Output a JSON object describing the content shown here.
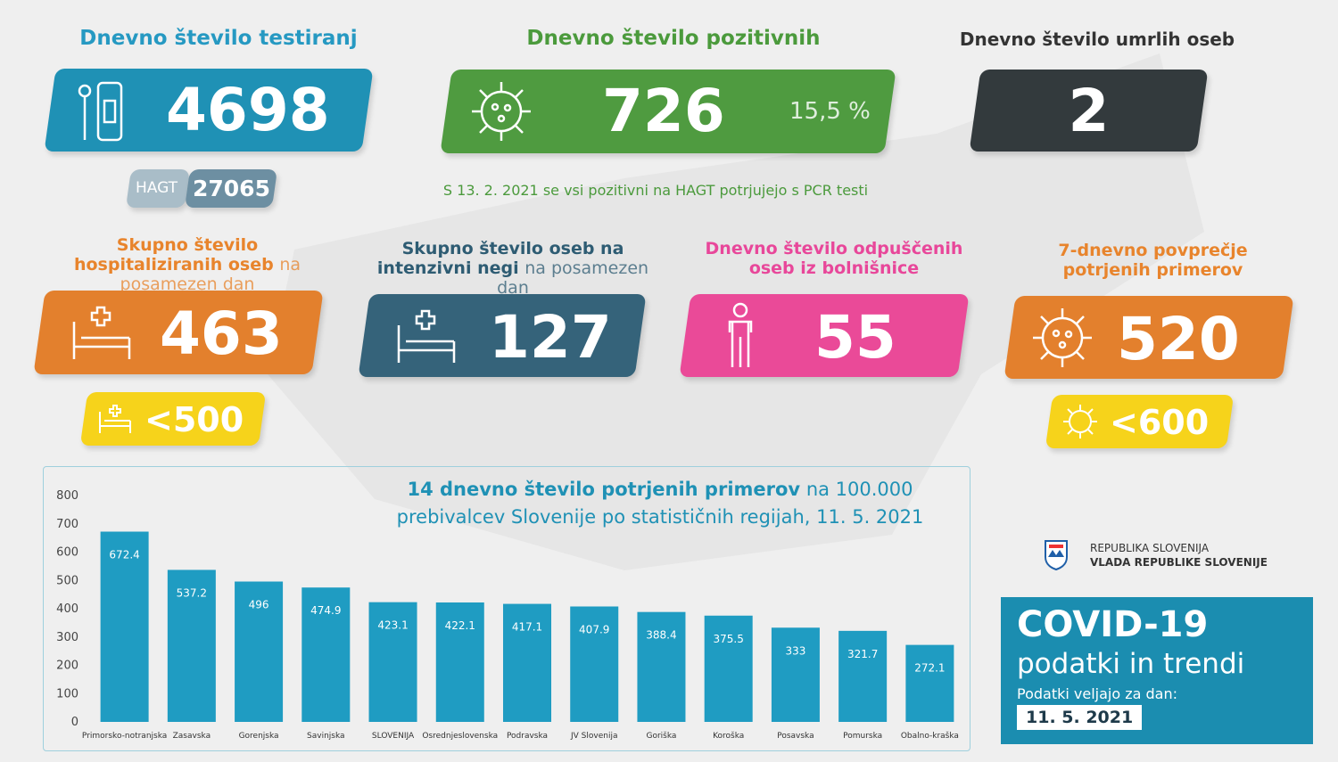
{
  "cards": [
    {
      "title": "Dnevno število testiranj",
      "value": "4698",
      "sub_label": "HAGT",
      "sub_value": "27065"
    },
    {
      "title": "Dnevno število pozitivnih",
      "value": "726",
      "percent": "15,5 %",
      "note": "S 13. 2. 2021 se vsi pozitivni na HAGT potrjujejo s PCR testi"
    },
    {
      "title": "Dnevno število umrlih oseb",
      "value": "2"
    },
    {
      "title_bold": "Skupno število hospitaliziranih oseb",
      "title_light": "na posamezen dan",
      "value": "463",
      "limit": "<500"
    },
    {
      "title_bold": "Skupno število oseb na intenzivni negi",
      "title_light": "na posamezen dan",
      "value": "127"
    },
    {
      "title": "Dnevno število odpuščenih oseb iz bolnišnice",
      "value": "55"
    },
    {
      "title": "7-dnevno povprečje potrjenih primerov",
      "value": "520",
      "limit": "<600"
    }
  ],
  "chart_data": {
    "type": "bar",
    "title": [
      "14 dnevno število potrjenih primerov",
      "na 100.000 prebivalcev Slovenije po statističnih regijah, 11. 5. 2021"
    ],
    "categories": [
      "Primorsko-notranjska",
      "Zasavska",
      "Gorenjska",
      "Savinjska",
      "SLOVENIJA",
      "Osrednjeslovenska",
      "Podravska",
      "JV Slovenija",
      "Goriška",
      "Koroška",
      "Posavska",
      "Pomurska",
      "Obalno-kraška"
    ],
    "values": [
      672.4,
      537.2,
      496,
      474.9,
      423.1,
      422.1,
      417.1,
      407.9,
      388.4,
      375.5,
      333,
      321.7,
      272.1
    ],
    "color": "#1f9cc2",
    "ylim": [
      0,
      800
    ],
    "yticks": [
      0,
      100,
      200,
      300,
      400,
      500,
      600,
      700,
      800
    ]
  },
  "footer": {
    "org1": "REPUBLIKA SLOVENIJA",
    "org2": "VLADA REPUBLIKE SLOVENIJE",
    "heading": "COVID-19",
    "subheading": "podatki in trendi",
    "date_label": "Podatki veljajo za dan:",
    "date": "11. 5. 2021"
  }
}
